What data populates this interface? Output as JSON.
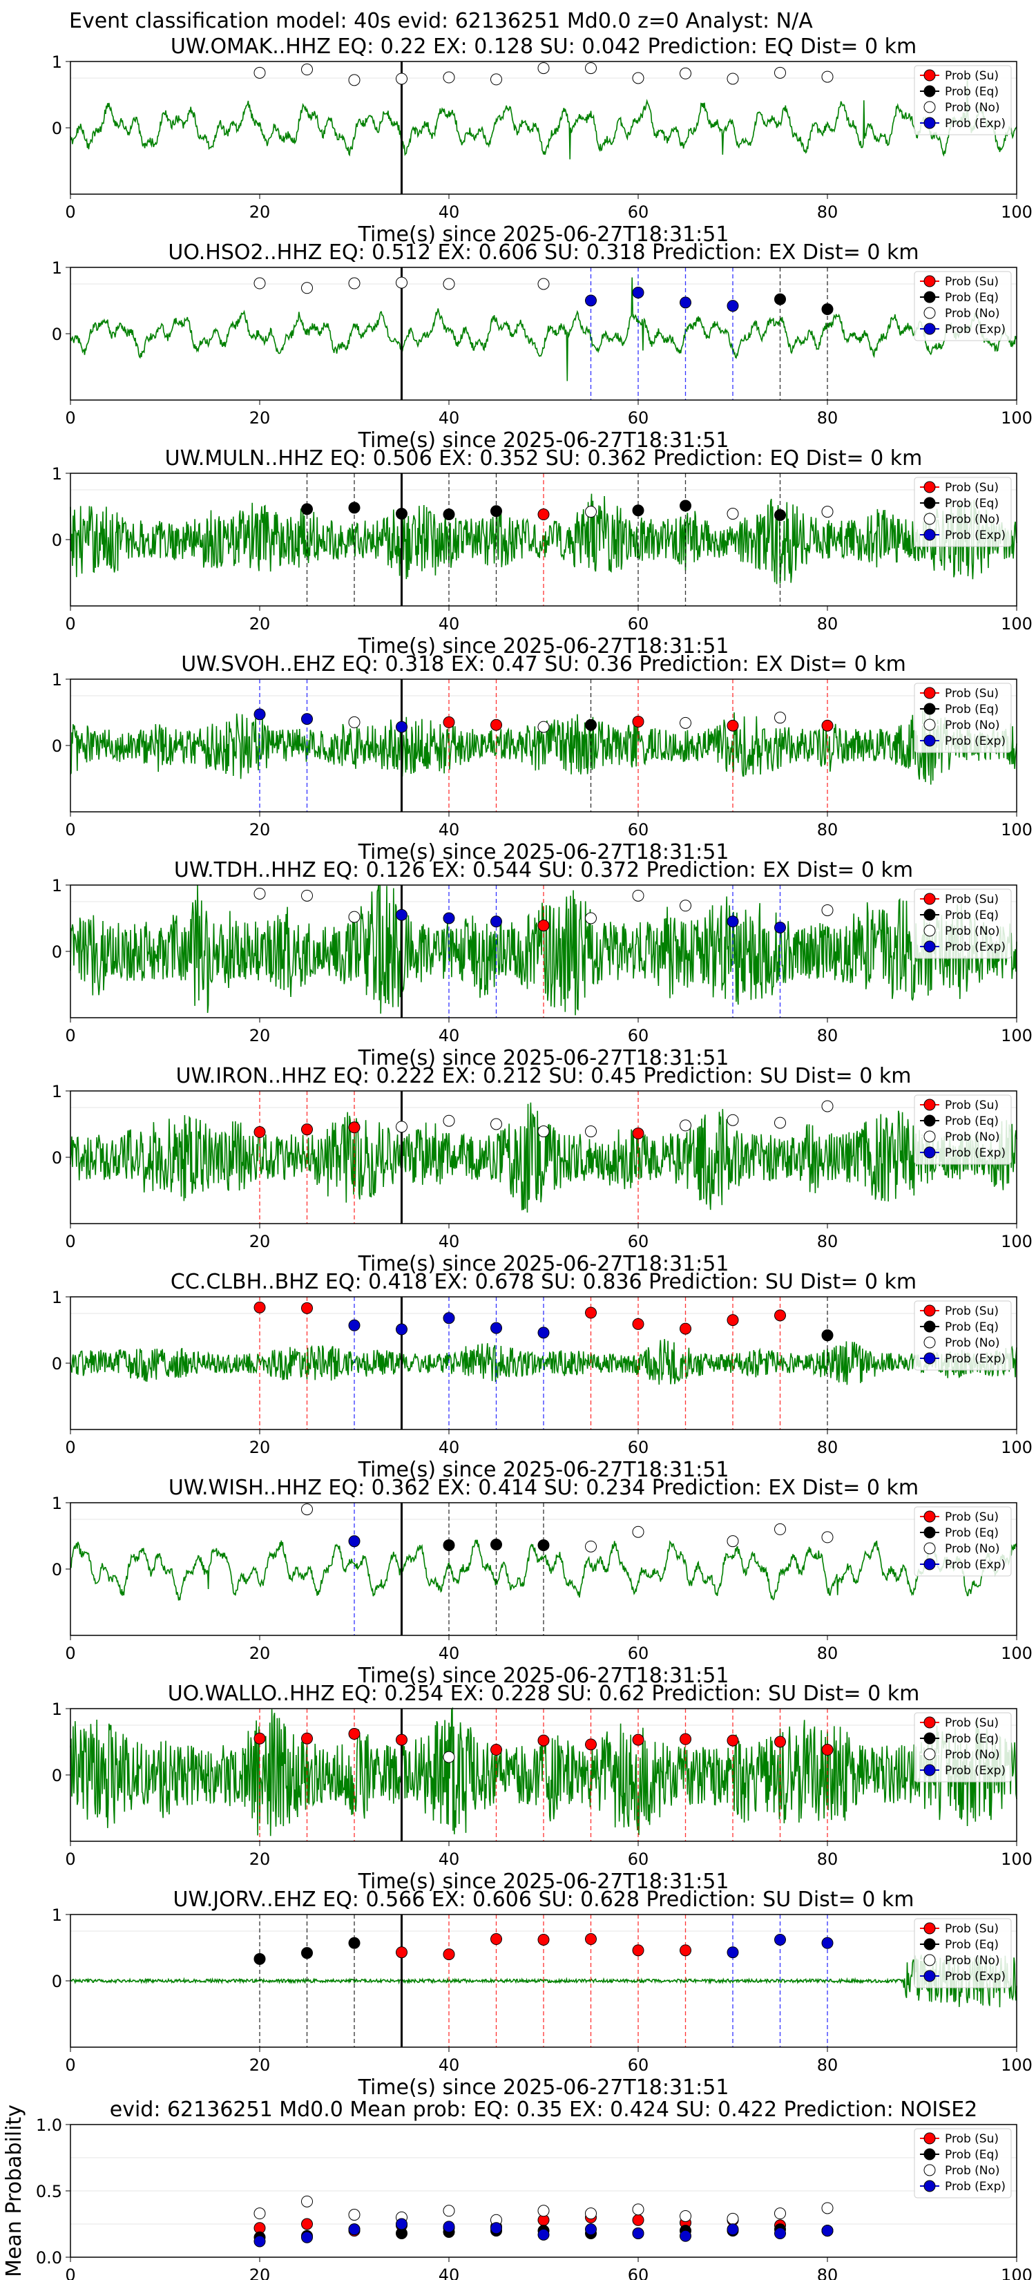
{
  "header": {
    "title": "Event classification model: 40s evid: 62136251 Md0.0 z=0 Analyst: N/A"
  },
  "legend_labels": [
    "Prob (Su)",
    "Prob (Eq)",
    "Prob (No)",
    "Prob (Exp)"
  ],
  "class_colors": {
    "su": "#ff0000",
    "eq": "#000000",
    "no": "#ffffff",
    "exp": "#0000cc"
  },
  "waveform_color": "#008000",
  "xlabel": "Time(s) since 2025-06-27T18:31:51",
  "x_ticks": [
    "0",
    "20",
    "40",
    "60",
    "80",
    "100"
  ],
  "station_y_ticks": [
    "0",
    "1"
  ],
  "chart_data": [
    {
      "type": "line",
      "title": "UW.OMAK..HHZ   EQ: 0.22  EX: 0.128  SU: 0.042   Prediction: EQ    Dist= 0 km",
      "xlabel": "Time(s) since 2025-06-27T18:31:51",
      "xlim": [
        0,
        100
      ],
      "ylim": [
        -1,
        1
      ],
      "arrival_time": 35,
      "waveform": {
        "style": "smooth",
        "amplitude": 0.35
      },
      "windows": [
        {
          "t": 20,
          "c": "no",
          "p": 0.83
        },
        {
          "t": 25,
          "c": "no",
          "p": 0.88
        },
        {
          "t": 30,
          "c": "no",
          "p": 0.72
        },
        {
          "t": 35,
          "c": "no",
          "p": 0.74
        },
        {
          "t": 40,
          "c": "no",
          "p": 0.76
        },
        {
          "t": 45,
          "c": "no",
          "p": 0.73
        },
        {
          "t": 50,
          "c": "no",
          "p": 0.9
        },
        {
          "t": 55,
          "c": "no",
          "p": 0.9
        },
        {
          "t": 60,
          "c": "no",
          "p": 0.75
        },
        {
          "t": 65,
          "c": "no",
          "p": 0.82
        },
        {
          "t": 70,
          "c": "no",
          "p": 0.74
        },
        {
          "t": 75,
          "c": "no",
          "p": 0.83
        },
        {
          "t": 80,
          "c": "no",
          "p": 0.77
        }
      ]
    },
    {
      "type": "line",
      "title": "UO.HSO2..HHZ   EQ: 0.512  EX: 0.606  SU: 0.318   Prediction: EX    Dist= 0 km",
      "xlabel": "Time(s) since 2025-06-27T18:31:51",
      "xlim": [
        0,
        100
      ],
      "ylim": [
        -1,
        1
      ],
      "arrival_time": 35,
      "waveform": {
        "style": "smooth",
        "amplitude": 0.3
      },
      "windows": [
        {
          "t": 20,
          "c": "no",
          "p": 0.76
        },
        {
          "t": 25,
          "c": "no",
          "p": 0.69
        },
        {
          "t": 30,
          "c": "no",
          "p": 0.76
        },
        {
          "t": 35,
          "c": "no",
          "p": 0.77
        },
        {
          "t": 40,
          "c": "no",
          "p": 0.75
        },
        {
          "t": 50,
          "c": "no",
          "p": 0.75
        },
        {
          "t": 55,
          "c": "exp",
          "p": 0.5
        },
        {
          "t": 60,
          "c": "exp",
          "p": 0.62
        },
        {
          "t": 65,
          "c": "exp",
          "p": 0.47
        },
        {
          "t": 70,
          "c": "exp",
          "p": 0.42
        },
        {
          "t": 75,
          "c": "eq",
          "p": 0.52
        },
        {
          "t": 80,
          "c": "eq",
          "p": 0.37
        }
      ]
    },
    {
      "type": "line",
      "title": "UW.MULN..HHZ   EQ: 0.506  EX: 0.352  SU: 0.362   Prediction: EQ    Dist= 0 km",
      "xlabel": "Time(s) since 2025-06-27T18:31:51",
      "xlim": [
        0,
        100
      ],
      "ylim": [
        -1,
        1
      ],
      "arrival_time": 35,
      "waveform": {
        "style": "noisy",
        "amplitude": 0.3
      },
      "windows": [
        {
          "t": 25,
          "c": "eq",
          "p": 0.46
        },
        {
          "t": 30,
          "c": "eq",
          "p": 0.48
        },
        {
          "t": 35,
          "c": "eq",
          "p": 0.39
        },
        {
          "t": 40,
          "c": "eq",
          "p": 0.38
        },
        {
          "t": 45,
          "c": "eq",
          "p": 0.43
        },
        {
          "t": 50,
          "c": "su",
          "p": 0.38
        },
        {
          "t": 55,
          "c": "no",
          "p": 0.42
        },
        {
          "t": 60,
          "c": "eq",
          "p": 0.44
        },
        {
          "t": 65,
          "c": "eq",
          "p": 0.51
        },
        {
          "t": 70,
          "c": "no",
          "p": 0.39
        },
        {
          "t": 75,
          "c": "eq",
          "p": 0.37
        },
        {
          "t": 80,
          "c": "no",
          "p": 0.42
        }
      ]
    },
    {
      "type": "line",
      "title": "UW.SVOH..EHZ   EQ: 0.318  EX: 0.47  SU: 0.36   Prediction: EX    Dist= 0 km",
      "xlabel": "Time(s) since 2025-06-27T18:31:51",
      "xlim": [
        0,
        100
      ],
      "ylim": [
        -1,
        1
      ],
      "arrival_time": 35,
      "waveform": {
        "style": "noisy",
        "amplitude": 0.25
      },
      "windows": [
        {
          "t": 20,
          "c": "exp",
          "p": 0.47
        },
        {
          "t": 25,
          "c": "exp",
          "p": 0.4
        },
        {
          "t": 30,
          "c": "no",
          "p": 0.35
        },
        {
          "t": 35,
          "c": "exp",
          "p": 0.28
        },
        {
          "t": 40,
          "c": "su",
          "p": 0.35
        },
        {
          "t": 45,
          "c": "su",
          "p": 0.31
        },
        {
          "t": 50,
          "c": "no",
          "p": 0.28
        },
        {
          "t": 55,
          "c": "eq",
          "p": 0.31
        },
        {
          "t": 60,
          "c": "su",
          "p": 0.36
        },
        {
          "t": 65,
          "c": "no",
          "p": 0.34
        },
        {
          "t": 70,
          "c": "su",
          "p": 0.3
        },
        {
          "t": 75,
          "c": "no",
          "p": 0.42
        },
        {
          "t": 80,
          "c": "su",
          "p": 0.3
        }
      ]
    },
    {
      "type": "line",
      "title": "UW.TDH..HHZ   EQ: 0.126  EX: 0.544  SU: 0.372   Prediction: EX    Dist= 0 km",
      "xlabel": "Time(s) since 2025-06-27T18:31:51",
      "xlim": [
        0,
        100
      ],
      "ylim": [
        -1,
        1
      ],
      "arrival_time": 35,
      "waveform": {
        "style": "noisy",
        "amplitude": 0.45
      },
      "windows": [
        {
          "t": 20,
          "c": "no",
          "p": 0.87
        },
        {
          "t": 25,
          "c": "no",
          "p": 0.84
        },
        {
          "t": 30,
          "c": "no",
          "p": 0.52
        },
        {
          "t": 35,
          "c": "exp",
          "p": 0.55
        },
        {
          "t": 40,
          "c": "exp",
          "p": 0.5
        },
        {
          "t": 45,
          "c": "exp",
          "p": 0.45
        },
        {
          "t": 50,
          "c": "su",
          "p": 0.39
        },
        {
          "t": 55,
          "c": "no",
          "p": 0.5
        },
        {
          "t": 60,
          "c": "no",
          "p": 0.84
        },
        {
          "t": 65,
          "c": "no",
          "p": 0.69
        },
        {
          "t": 70,
          "c": "exp",
          "p": 0.45
        },
        {
          "t": 75,
          "c": "exp",
          "p": 0.36
        },
        {
          "t": 80,
          "c": "no",
          "p": 0.62
        }
      ]
    },
    {
      "type": "line",
      "title": "UW.IRON..HHZ   EQ: 0.222  EX: 0.212  SU: 0.45   Prediction: SU    Dist= 0 km",
      "xlabel": "Time(s) since 2025-06-27T18:31:51",
      "xlim": [
        0,
        100
      ],
      "ylim": [
        -1,
        1
      ],
      "arrival_time": 35,
      "waveform": {
        "style": "noisy",
        "amplitude": 0.35
      },
      "windows": [
        {
          "t": 20,
          "c": "su",
          "p": 0.38
        },
        {
          "t": 25,
          "c": "su",
          "p": 0.42
        },
        {
          "t": 30,
          "c": "su",
          "p": 0.45
        },
        {
          "t": 35,
          "c": "no",
          "p": 0.46
        },
        {
          "t": 40,
          "c": "no",
          "p": 0.55
        },
        {
          "t": 45,
          "c": "no",
          "p": 0.5
        },
        {
          "t": 50,
          "c": "no",
          "p": 0.39
        },
        {
          "t": 55,
          "c": "no",
          "p": 0.39
        },
        {
          "t": 60,
          "c": "su",
          "p": 0.36
        },
        {
          "t": 65,
          "c": "no",
          "p": 0.48
        },
        {
          "t": 70,
          "c": "no",
          "p": 0.56
        },
        {
          "t": 75,
          "c": "no",
          "p": 0.52
        },
        {
          "t": 80,
          "c": "no",
          "p": 0.77
        }
      ]
    },
    {
      "type": "line",
      "title": "CC.CLBH..BHZ   EQ: 0.418  EX: 0.678  SU: 0.836   Prediction: SU    Dist= 0 km",
      "xlabel": "Time(s) since 2025-06-27T18:31:51",
      "xlim": [
        0,
        100
      ],
      "ylim": [
        -1,
        1
      ],
      "arrival_time": 35,
      "waveform": {
        "style": "noisy",
        "amplitude": 0.15
      },
      "windows": [
        {
          "t": 20,
          "c": "su",
          "p": 0.84
        },
        {
          "t": 25,
          "c": "su",
          "p": 0.83
        },
        {
          "t": 30,
          "c": "exp",
          "p": 0.57
        },
        {
          "t": 35,
          "c": "exp",
          "p": 0.51
        },
        {
          "t": 40,
          "c": "exp",
          "p": 0.68
        },
        {
          "t": 45,
          "c": "exp",
          "p": 0.53
        },
        {
          "t": 50,
          "c": "exp",
          "p": 0.46
        },
        {
          "t": 55,
          "c": "su",
          "p": 0.76
        },
        {
          "t": 60,
          "c": "su",
          "p": 0.59
        },
        {
          "t": 65,
          "c": "su",
          "p": 0.52
        },
        {
          "t": 70,
          "c": "su",
          "p": 0.65
        },
        {
          "t": 75,
          "c": "su",
          "p": 0.72
        },
        {
          "t": 80,
          "c": "eq",
          "p": 0.42
        }
      ]
    },
    {
      "type": "line",
      "title": "UW.WISH..HHZ   EQ: 0.362  EX: 0.414  SU: 0.234   Prediction: EX    Dist= 0 km",
      "xlabel": "Time(s) since 2025-06-27T18:31:51",
      "xlim": [
        0,
        100
      ],
      "ylim": [
        -1,
        1
      ],
      "arrival_time": 35,
      "waveform": {
        "style": "smooth",
        "amplitude": 0.4
      },
      "windows": [
        {
          "t": 25,
          "c": "no",
          "p": 0.9
        },
        {
          "t": 30,
          "c": "exp",
          "p": 0.42
        },
        {
          "t": 40,
          "c": "eq",
          "p": 0.36
        },
        {
          "t": 45,
          "c": "eq",
          "p": 0.37
        },
        {
          "t": 50,
          "c": "eq",
          "p": 0.36
        },
        {
          "t": 55,
          "c": "no",
          "p": 0.34
        },
        {
          "t": 60,
          "c": "no",
          "p": 0.56
        },
        {
          "t": 70,
          "c": "no",
          "p": 0.42
        },
        {
          "t": 75,
          "c": "no",
          "p": 0.6
        },
        {
          "t": 80,
          "c": "no",
          "p": 0.48
        }
      ]
    },
    {
      "type": "line",
      "title": "UO.WALLO..HHZ   EQ: 0.254  EX: 0.228  SU: 0.62   Prediction: SU    Dist= 0 km",
      "xlabel": "Time(s) since 2025-06-27T18:31:51",
      "xlim": [
        0,
        100
      ],
      "ylim": [
        -1,
        1
      ],
      "arrival_time": 35,
      "waveform": {
        "style": "noisy",
        "amplitude": 0.45
      },
      "windows": [
        {
          "t": 20,
          "c": "su",
          "p": 0.55
        },
        {
          "t": 25,
          "c": "su",
          "p": 0.55
        },
        {
          "t": 30,
          "c": "su",
          "p": 0.62
        },
        {
          "t": 35,
          "c": "su",
          "p": 0.53
        },
        {
          "t": 40,
          "c": "no",
          "p": 0.27
        },
        {
          "t": 45,
          "c": "su",
          "p": 0.38
        },
        {
          "t": 50,
          "c": "su",
          "p": 0.52
        },
        {
          "t": 55,
          "c": "su",
          "p": 0.46
        },
        {
          "t": 60,
          "c": "su",
          "p": 0.53
        },
        {
          "t": 65,
          "c": "su",
          "p": 0.54
        },
        {
          "t": 70,
          "c": "su",
          "p": 0.52
        },
        {
          "t": 75,
          "c": "su",
          "p": 0.5
        },
        {
          "t": 80,
          "c": "su",
          "p": 0.38
        }
      ]
    },
    {
      "type": "line",
      "title": "UW.JORV..EHZ   EQ: 0.566  EX: 0.606  SU: 0.628   Prediction: SU    Dist= 0 km",
      "xlabel": "Time(s) since 2025-06-27T18:31:51",
      "xlim": [
        0,
        100
      ],
      "ylim": [
        -1,
        1
      ],
      "arrival_time": 35,
      "waveform": {
        "style": "quiet",
        "amplitude": 0.05
      },
      "windows": [
        {
          "t": 20,
          "c": "eq",
          "p": 0.33
        },
        {
          "t": 25,
          "c": "eq",
          "p": 0.42
        },
        {
          "t": 30,
          "c": "eq",
          "p": 0.57
        },
        {
          "t": 35,
          "c": "su",
          "p": 0.43
        },
        {
          "t": 40,
          "c": "su",
          "p": 0.4
        },
        {
          "t": 45,
          "c": "su",
          "p": 0.63
        },
        {
          "t": 50,
          "c": "su",
          "p": 0.62
        },
        {
          "t": 55,
          "c": "su",
          "p": 0.63
        },
        {
          "t": 60,
          "c": "su",
          "p": 0.46
        },
        {
          "t": 65,
          "c": "su",
          "p": 0.46
        },
        {
          "t": 70,
          "c": "exp",
          "p": 0.43
        },
        {
          "t": 75,
          "c": "exp",
          "p": 0.62
        },
        {
          "t": 80,
          "c": "exp",
          "p": 0.57
        }
      ]
    },
    {
      "type": "scatter",
      "title": "evid: 62136251  Md0.0   Mean prob:   EQ: 0.35  EX: 0.424  SU: 0.422   Prediction: NOISE2",
      "ylabel": "Mean Probability",
      "xlim": [
        0,
        100
      ],
      "ylim": [
        0,
        1
      ],
      "y_ticks": [
        "0.0",
        "0.5",
        "1.0"
      ],
      "series": [
        {
          "name": "Prob (Su)",
          "c": "su",
          "x": [
            20,
            25,
            30,
            35,
            40,
            45,
            50,
            55,
            60,
            65,
            70,
            75,
            80
          ],
          "y": [
            0.22,
            0.25,
            0.2,
            0.24,
            0.22,
            0.23,
            0.28,
            0.3,
            0.28,
            0.26,
            0.28,
            0.24,
            0.2
          ]
        },
        {
          "name": "Prob (Eq)",
          "c": "eq",
          "x": [
            20,
            25,
            30,
            35,
            40,
            45,
            50,
            55,
            60,
            65,
            70,
            75,
            80
          ],
          "y": [
            0.15,
            0.16,
            0.21,
            0.18,
            0.19,
            0.2,
            0.2,
            0.18,
            0.18,
            0.2,
            0.2,
            0.21,
            0.2
          ]
        },
        {
          "name": "Prob (No)",
          "c": "no",
          "x": [
            20,
            25,
            30,
            35,
            40,
            45,
            50,
            55,
            60,
            65,
            70,
            75,
            80
          ],
          "y": [
            0.33,
            0.42,
            0.32,
            0.3,
            0.35,
            0.28,
            0.35,
            0.33,
            0.36,
            0.31,
            0.29,
            0.33,
            0.37
          ]
        },
        {
          "name": "Prob (Exp)",
          "c": "exp",
          "x": [
            20,
            25,
            30,
            35,
            40,
            45,
            50,
            55,
            60,
            65,
            70,
            75,
            80
          ],
          "y": [
            0.12,
            0.15,
            0.21,
            0.25,
            0.23,
            0.22,
            0.17,
            0.21,
            0.18,
            0.16,
            0.21,
            0.18,
            0.2
          ]
        }
      ]
    }
  ]
}
